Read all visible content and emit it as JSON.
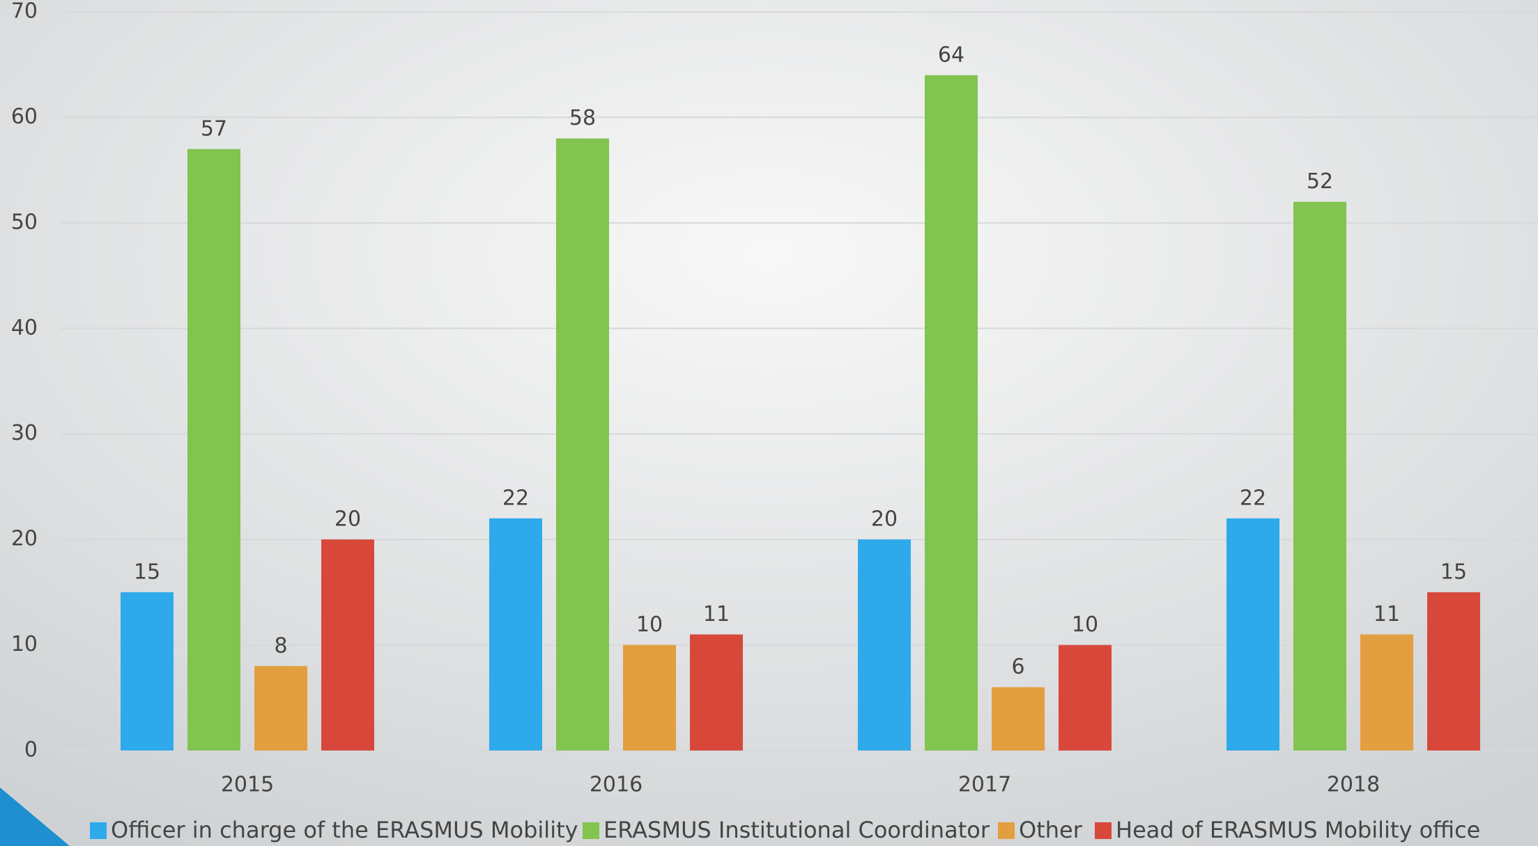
{
  "chart_data": {
    "type": "bar",
    "categories": [
      "2015",
      "2016",
      "2017",
      "2018"
    ],
    "series": [
      {
        "name": "Officer in charge of the ERASMUS Mobility",
        "color": "#2eaaeb",
        "values": [
          15,
          22,
          20,
          22
        ]
      },
      {
        "name": "ERASMUS Institutional Coordinator",
        "color": "#82c44f",
        "values": [
          57,
          58,
          64,
          52
        ]
      },
      {
        "name": "Other",
        "color": "#e39e3f",
        "values": [
          8,
          10,
          6,
          11
        ]
      },
      {
        "name": "Head of ERASMUS Mobility office",
        "color": "#d7483b",
        "values": [
          20,
          11,
          10,
          15
        ]
      }
    ],
    "ylim": [
      0,
      70
    ],
    "yticks": [
      0,
      10,
      20,
      30,
      40,
      50,
      60,
      70
    ],
    "grid": true,
    "legend": "bottom"
  }
}
